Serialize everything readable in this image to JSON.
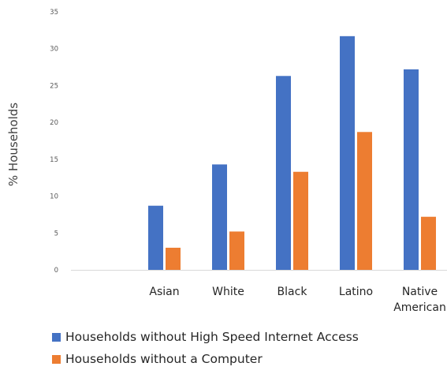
{
  "chart_data": {
    "type": "bar",
    "categories": [
      "Asian",
      "White",
      "Black",
      "Latino",
      "Native American"
    ],
    "category_lines": [
      [
        "Asian"
      ],
      [
        "White"
      ],
      [
        "Black"
      ],
      [
        "Latino"
      ],
      [
        "Native",
        "American"
      ]
    ],
    "series": [
      {
        "name": "Households without High Speed Internet Access",
        "color": "#4472C4",
        "values": [
          8.7,
          14.3,
          26.3,
          31.7,
          27.2
        ]
      },
      {
        "name": "Households without a Computer",
        "color": "#ED7D31",
        "values": [
          3.0,
          5.2,
          13.3,
          18.7,
          7.2
        ]
      }
    ],
    "ylabel": "% Households",
    "ylim": [
      0,
      35
    ],
    "yticks": [
      "0",
      "5",
      "10",
      "15",
      "20",
      "25",
      "30",
      "35"
    ],
    "grid": false,
    "legend_position": "bottom-left"
  }
}
